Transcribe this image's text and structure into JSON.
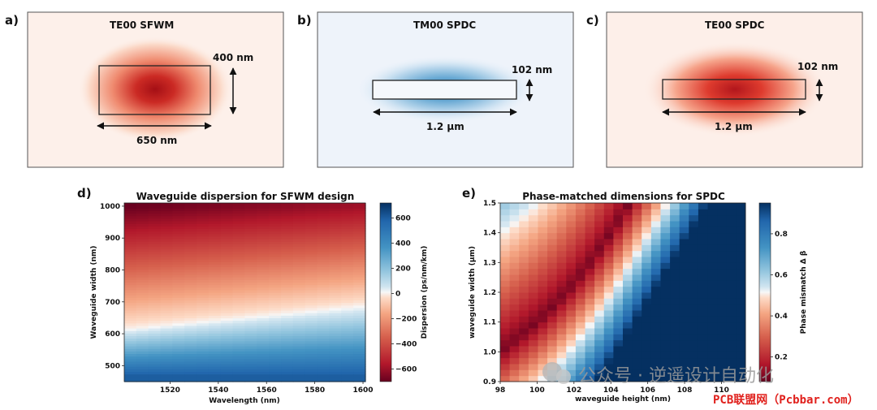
{
  "panels": {
    "a": {
      "label": "a)",
      "title": "TE00 SFWM",
      "height_label": "400 nm",
      "width_label": "650 nm"
    },
    "b": {
      "label": "b)",
      "title": "TM00 SPDC",
      "height_label": "102 nm",
      "width_label": "1.2 µm"
    },
    "c": {
      "label": "c)",
      "title": "TE00 SPDC",
      "height_label": "102 nm",
      "width_label": "1.2 µm"
    }
  },
  "chart_data": [
    {
      "panel_label": "d)",
      "type": "heatmap",
      "title": "Waveguide dispersion for SFWM design",
      "xlabel": "Wavelength (nm)",
      "ylabel": "Waveguide width (nm)",
      "xlim": [
        1501,
        1601
      ],
      "ylim": [
        450,
        1010
      ],
      "x_ticks": [
        "1520",
        "1540",
        "1560",
        "1580",
        "1600"
      ],
      "y_ticks": [
        "500",
        "600",
        "700",
        "800",
        "900",
        "1000"
      ],
      "colorbar": {
        "label": "Dispersion (ps/nm/km)",
        "range": [
          -700,
          720
        ],
        "ticks": [
          "600",
          "400",
          "200",
          "0",
          "−200",
          "−400",
          "−600"
        ],
        "colormap": "RdBu"
      },
      "zero_dispersion_width": {
        "at_1500nm": 615,
        "at_1600nm": 690
      },
      "value_at_top_left": -700,
      "value_at_bottom": 600
    },
    {
      "panel_label": "e)",
      "type": "heatmap",
      "title": "Phase-matched dimensions for SPDC",
      "xlabel": "waveguide height (nm)",
      "ylabel": "waveguide width (μm)",
      "xlim": [
        98,
        111.3
      ],
      "ylim": [
        0.9,
        1.5
      ],
      "x_ticks": [
        "98",
        "100",
        "102",
        "104",
        "106",
        "108",
        "110"
      ],
      "y_ticks": [
        "0.9",
        "1.0",
        "1.1",
        "1.2",
        "1.3",
        "1.4",
        "1.5"
      ],
      "colorbar": {
        "label": "Phase mismatch Δ β",
        "range": [
          0.08,
          0.95
        ],
        "ticks": [
          "0.8",
          "0.6",
          "0.4",
          "0.2"
        ],
        "colormap": "RdBu"
      },
      "phase_matched_curve": {
        "height_nm": [
          98,
          99,
          100,
          101,
          102,
          103,
          104,
          105
        ],
        "width_um": [
          1.0,
          1.05,
          1.1,
          1.16,
          1.23,
          1.31,
          1.4,
          1.5
        ]
      }
    }
  ],
  "watermark": {
    "text": "公众号 · 逆遥设计自动化",
    "site": "PCB联盟网（Pcbbar.com）"
  }
}
